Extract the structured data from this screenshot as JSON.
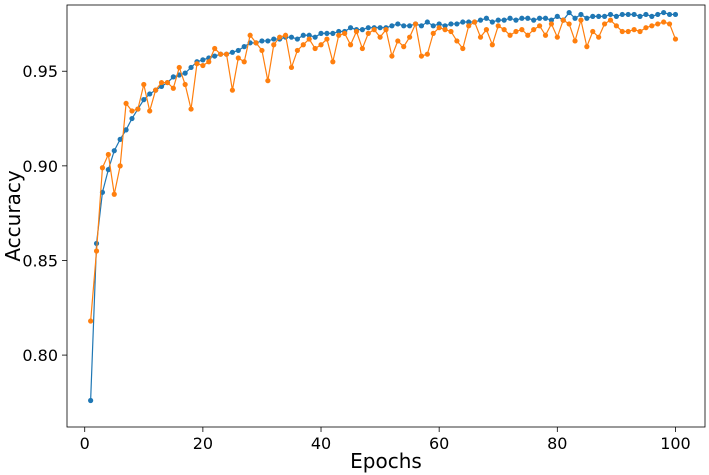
{
  "chart_data": {
    "type": "line",
    "title": "",
    "xlabel": "Epochs",
    "ylabel": "Accuracy",
    "xlim": [
      -3,
      105
    ],
    "ylim": [
      0.762,
      0.985
    ],
    "xticks": [
      0,
      20,
      40,
      60,
      80,
      100
    ],
    "yticks": [
      0.8,
      0.85,
      0.9,
      0.95
    ],
    "ytick_labels": [
      "0.80",
      "0.85",
      "0.90",
      "0.95"
    ],
    "grid": false,
    "legend": "none",
    "x": [
      1,
      2,
      3,
      4,
      5,
      6,
      7,
      8,
      9,
      10,
      11,
      12,
      13,
      14,
      15,
      16,
      17,
      18,
      19,
      20,
      21,
      22,
      23,
      24,
      25,
      26,
      27,
      28,
      29,
      30,
      31,
      32,
      33,
      34,
      35,
      36,
      37,
      38,
      39,
      40,
      41,
      42,
      43,
      44,
      45,
      46,
      47,
      48,
      49,
      50,
      51,
      52,
      53,
      54,
      55,
      56,
      57,
      58,
      59,
      60,
      61,
      62,
      63,
      64,
      65,
      66,
      67,
      68,
      69,
      70,
      71,
      72,
      73,
      74,
      75,
      76,
      77,
      78,
      79,
      80,
      81,
      82,
      83,
      84,
      85,
      86,
      87,
      88,
      89,
      90,
      91,
      92,
      93,
      94,
      95,
      96,
      97,
      98,
      99,
      100
    ],
    "series": [
      {
        "color": "#1f77b4",
        "values": [
          0.776,
          0.859,
          0.886,
          0.898,
          0.908,
          0.914,
          0.919,
          0.925,
          0.93,
          0.935,
          0.938,
          0.94,
          0.942,
          0.944,
          0.947,
          0.948,
          0.949,
          0.952,
          0.955,
          0.956,
          0.957,
          0.958,
          0.959,
          0.959,
          0.96,
          0.961,
          0.963,
          0.965,
          0.965,
          0.966,
          0.966,
          0.967,
          0.967,
          0.968,
          0.968,
          0.967,
          0.969,
          0.969,
          0.968,
          0.97,
          0.97,
          0.97,
          0.971,
          0.971,
          0.973,
          0.972,
          0.972,
          0.973,
          0.973,
          0.973,
          0.973,
          0.974,
          0.975,
          0.974,
          0.974,
          0.975,
          0.974,
          0.976,
          0.974,
          0.975,
          0.974,
          0.975,
          0.975,
          0.976,
          0.976,
          0.976,
          0.977,
          0.978,
          0.976,
          0.977,
          0.977,
          0.978,
          0.977,
          0.978,
          0.978,
          0.977,
          0.978,
          0.978,
          0.977,
          0.979,
          0.977,
          0.981,
          0.978,
          0.98,
          0.978,
          0.979,
          0.979,
          0.979,
          0.98,
          0.979,
          0.98,
          0.98,
          0.98,
          0.979,
          0.98,
          0.979,
          0.98,
          0.981,
          0.98,
          0.98
        ]
      },
      {
        "color": "#ff7f0e",
        "values": [
          0.818,
          0.855,
          0.899,
          0.906,
          0.885,
          0.9,
          0.933,
          0.929,
          0.93,
          0.943,
          0.929,
          0.94,
          0.944,
          0.944,
          0.941,
          0.952,
          0.943,
          0.93,
          0.954,
          0.953,
          0.955,
          0.962,
          0.959,
          0.959,
          0.94,
          0.957,
          0.955,
          0.969,
          0.965,
          0.961,
          0.945,
          0.964,
          0.968,
          0.969,
          0.952,
          0.961,
          0.964,
          0.967,
          0.962,
          0.964,
          0.967,
          0.955,
          0.969,
          0.97,
          0.964,
          0.971,
          0.962,
          0.97,
          0.972,
          0.968,
          0.972,
          0.958,
          0.966,
          0.963,
          0.968,
          0.975,
          0.958,
          0.959,
          0.97,
          0.973,
          0.972,
          0.971,
          0.966,
          0.962,
          0.974,
          0.976,
          0.968,
          0.972,
          0.964,
          0.974,
          0.972,
          0.969,
          0.971,
          0.972,
          0.969,
          0.972,
          0.974,
          0.969,
          0.975,
          0.968,
          0.977,
          0.975,
          0.966,
          0.977,
          0.963,
          0.971,
          0.968,
          0.975,
          0.977,
          0.974,
          0.971,
          0.971,
          0.972,
          0.971,
          0.973,
          0.974,
          0.975,
          0.976,
          0.975,
          0.967
        ]
      }
    ]
  }
}
